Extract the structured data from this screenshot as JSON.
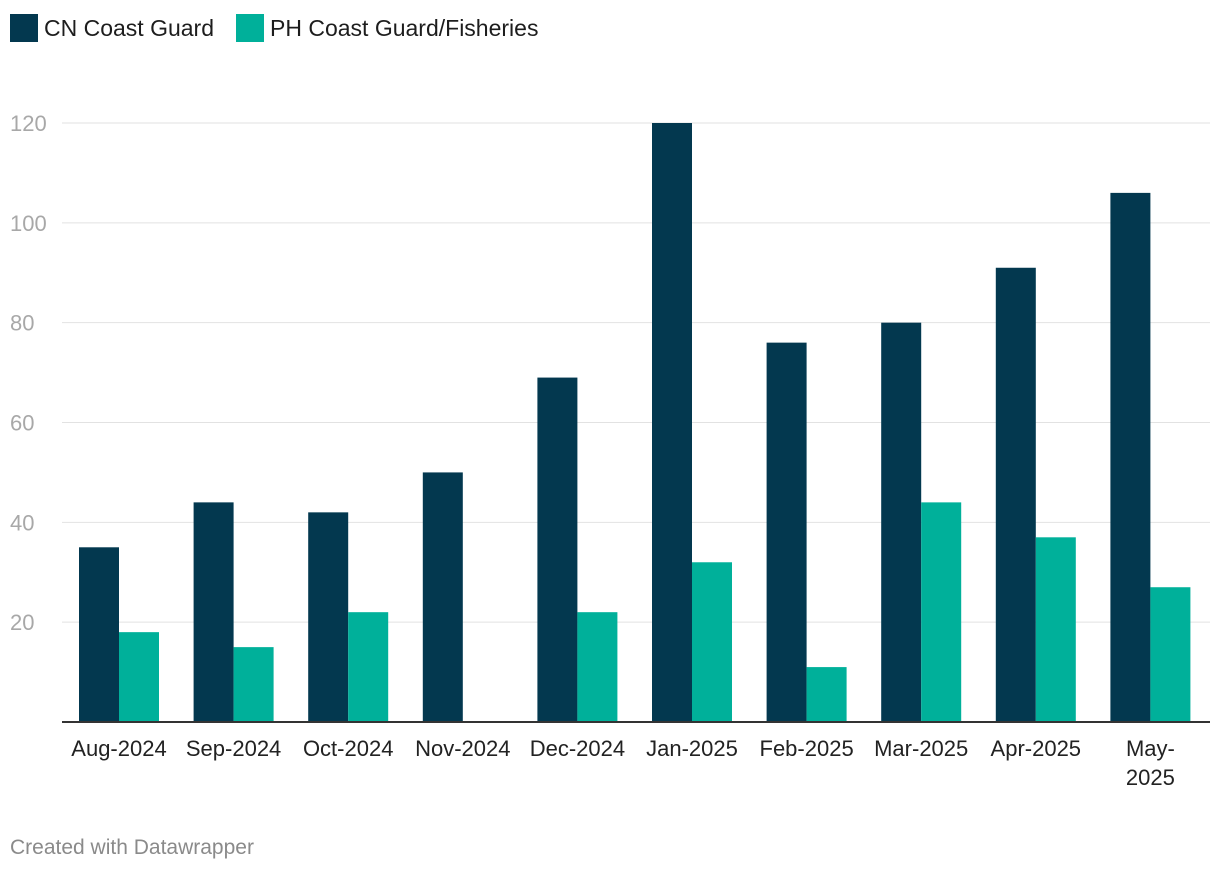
{
  "legend": {
    "items": [
      {
        "label": "CN Coast Guard",
        "color": "#03384f"
      },
      {
        "label": "PH Coast Guard/Fisheries",
        "color": "#00b09a"
      }
    ]
  },
  "footer": {
    "credit": "Created with Datawrapper"
  },
  "chart_data": {
    "type": "bar",
    "title": "",
    "xlabel": "",
    "ylabel": "",
    "ylim": [
      0,
      120
    ],
    "yticks": [
      20,
      40,
      60,
      80,
      100,
      120
    ],
    "grid": true,
    "legend_position": "top-left",
    "categories": [
      "Aug-2024",
      "Sep-2024",
      "Oct-2024",
      "Nov-2024",
      "Dec-2024",
      "Jan-2025",
      "Feb-2025",
      "Mar-2025",
      "Apr-2025",
      "May-2025"
    ],
    "category_labels": [
      [
        "Aug-2024"
      ],
      [
        "Sep-2024"
      ],
      [
        "Oct-2024"
      ],
      [
        "Nov-2024"
      ],
      [
        "Dec-2024"
      ],
      [
        "Jan-2025"
      ],
      [
        "Feb-2025"
      ],
      [
        "Mar-2025"
      ],
      [
        "Apr-2025"
      ],
      [
        "May-",
        "2025"
      ]
    ],
    "series": [
      {
        "name": "CN Coast Guard",
        "color": "#03384f",
        "values": [
          35,
          44,
          42,
          50,
          69,
          120,
          76,
          80,
          91,
          106
        ]
      },
      {
        "name": "PH Coast Guard/Fisheries",
        "color": "#00b09a",
        "values": [
          18,
          15,
          22,
          0,
          22,
          32,
          11,
          44,
          37,
          27
        ]
      }
    ]
  }
}
